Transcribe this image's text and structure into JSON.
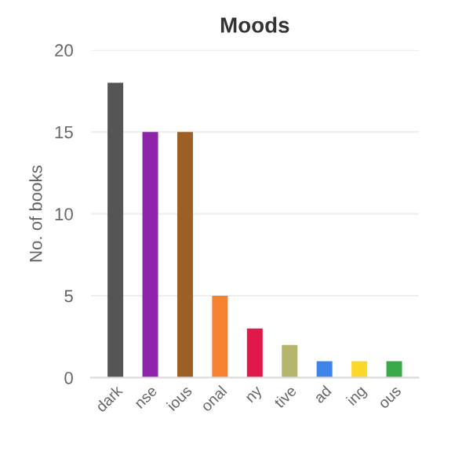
{
  "chart_data": {
    "type": "bar",
    "title": "Moods",
    "ylabel": "No. of books",
    "categories": [
      "dark",
      "nse",
      "ious",
      "onal",
      "ny",
      "tive",
      "ad",
      "ing",
      "ous"
    ],
    "values": [
      18,
      15,
      15,
      5,
      3,
      2,
      1,
      1,
      1
    ],
    "colors": [
      "#555555",
      "#8e24aa",
      "#9c5f24",
      "#f5822f",
      "#e0194a",
      "#b5b56b",
      "#3d85e8",
      "#fbd82a",
      "#3aa94a"
    ],
    "ylim": [
      0,
      20
    ],
    "yticks": [
      0,
      5,
      10,
      15,
      20
    ],
    "grid": "y"
  }
}
